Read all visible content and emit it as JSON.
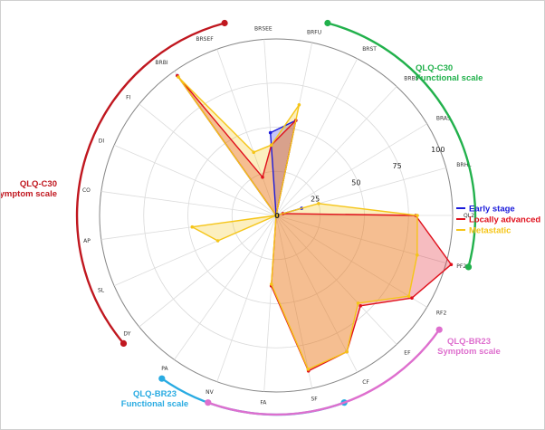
{
  "chart_data": {
    "type": "radar",
    "r_range": [
      0,
      100
    ],
    "r_ticks": [
      "25",
      "50",
      "75",
      "100"
    ],
    "center_label": "0",
    "grid": true,
    "legend_position": "right",
    "axes": [
      "QL2",
      "PF2",
      "RF2",
      "EF",
      "CF",
      "SF",
      "FA",
      "NV",
      "PA",
      "DY",
      "SL",
      "AP",
      "CO",
      "DI",
      "FI",
      "BRBI",
      "BRSEF",
      "BRSEE",
      "BRFU",
      "BRST",
      "BRBS",
      "BRAS",
      "BRHL"
    ],
    "series": [
      {
        "name": "Early stage",
        "color": "#1a1adb",
        "values": [
          0,
          0,
          0,
          0,
          0,
          0,
          0,
          0,
          0,
          0,
          0,
          0,
          0,
          0,
          0,
          97,
          0,
          47,
          55,
          0,
          0,
          0,
          15
        ]
      },
      {
        "name": "Locally advanced",
        "color": "#e0101c",
        "values": [
          79,
          103,
          90,
          70,
          87,
          90,
          40,
          0,
          0,
          0,
          0,
          0,
          0,
          0,
          0,
          97,
          23,
          40,
          55,
          0,
          0,
          0,
          4
        ]
      },
      {
        "name": "Metastatic",
        "color": "#f5c518",
        "values": [
          80,
          83,
          88,
          68,
          87,
          89,
          39,
          0,
          0,
          0,
          36,
          48,
          0,
          0,
          0,
          96,
          38,
          40,
          64,
          0,
          0,
          0,
          25
        ]
      }
    ],
    "groups": [
      {
        "line1": "QLQ-C30",
        "line2": "Functional scale",
        "color": "#22b14c"
      },
      {
        "line1": "QLQ-C30",
        "line2": "Symptom scale",
        "color": "#c0171f"
      },
      {
        "line1": "QLQ-BR23",
        "line2": "Functional scale",
        "color": "#29abe2"
      },
      {
        "line1": "QLQ-BR23",
        "line2": "Symptom scale",
        "color": "#de6fce"
      }
    ]
  }
}
